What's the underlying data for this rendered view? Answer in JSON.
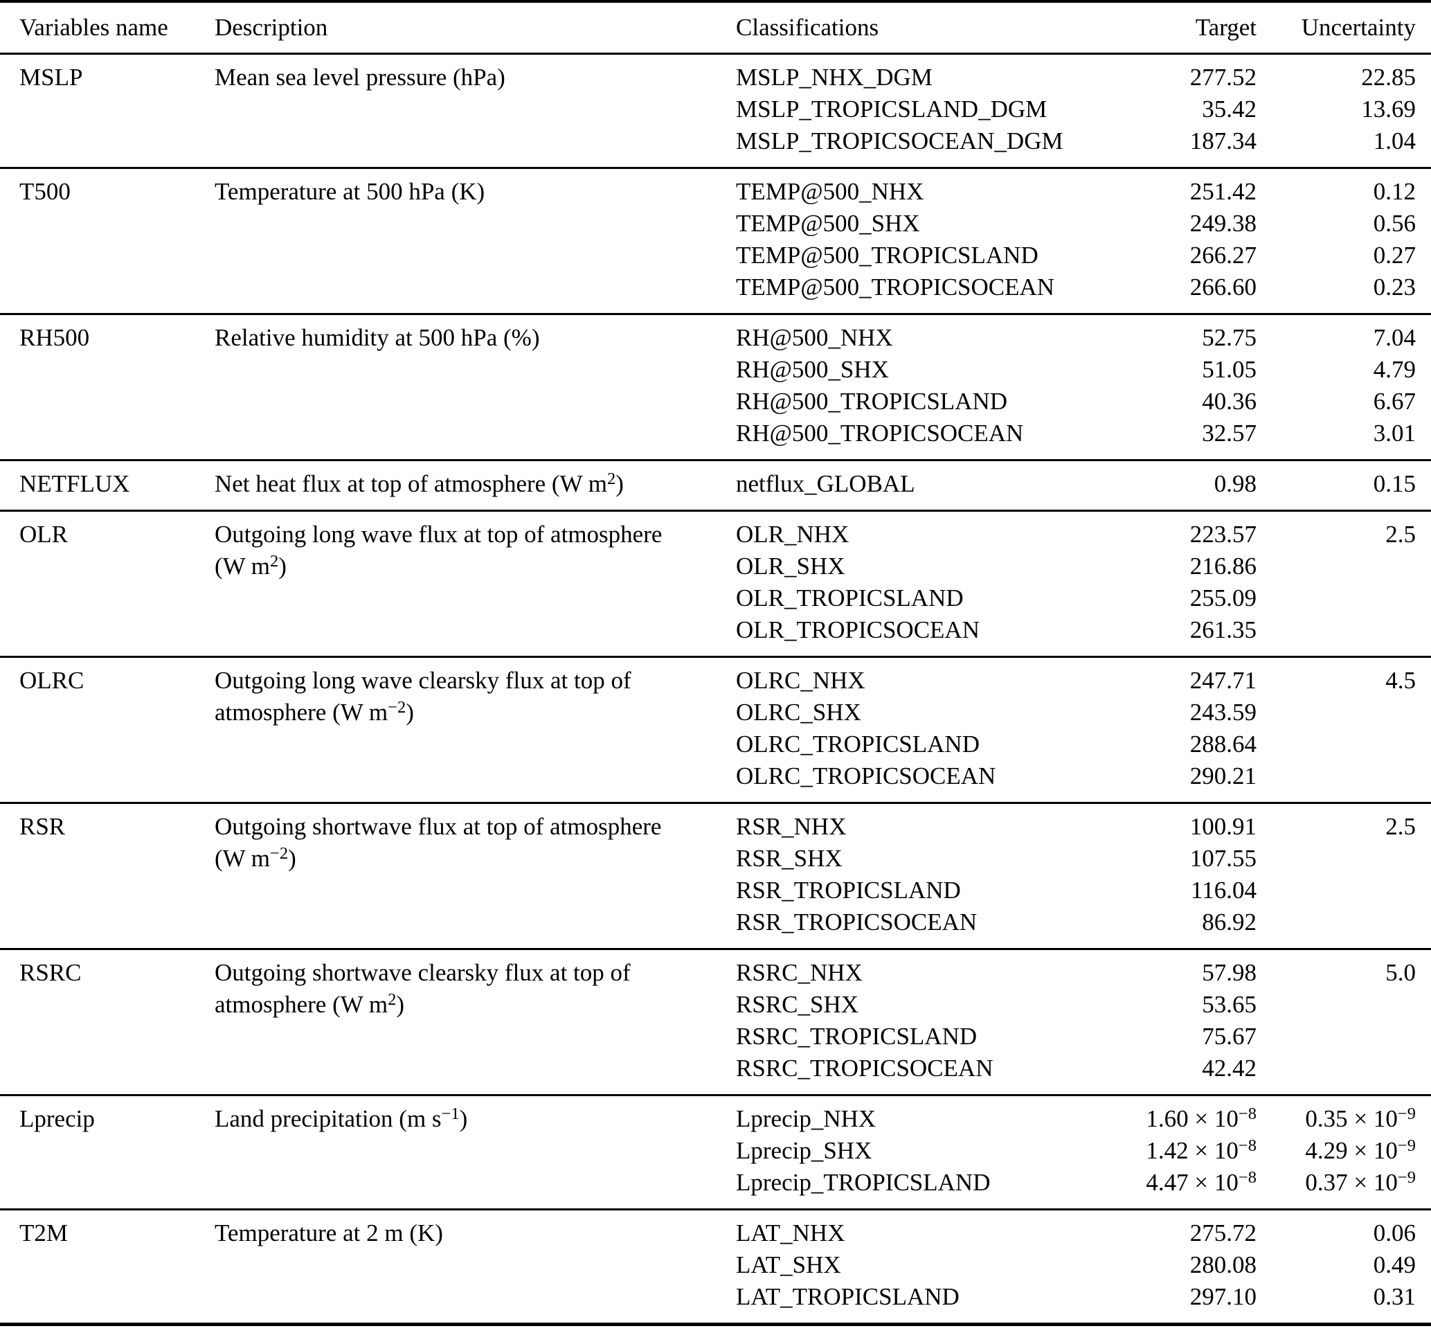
{
  "table": {
    "header": {
      "variables_name": "Variables name",
      "description": "Description",
      "classifications": "Classifications",
      "target": "Target",
      "uncertainty": "Uncertainty"
    },
    "groups": [
      {
        "variable": "MSLP",
        "description_lines": [
          "Mean sea level pressure (hPa)"
        ],
        "rows": [
          {
            "classification": "MSLP_NHX_DGM",
            "target": "277.52",
            "uncertainty": "22.85"
          },
          {
            "classification": "MSLP_TROPICSLAND_DGM",
            "target": "35.42",
            "uncertainty": "13.69"
          },
          {
            "classification": "MSLP_TROPICSOCEAN_DGM",
            "target": "187.34",
            "uncertainty": "1.04"
          }
        ]
      },
      {
        "variable": "T500",
        "description_lines": [
          "Temperature at 500 hPa (K)"
        ],
        "rows": [
          {
            "classification": "TEMP@500_NHX",
            "target": "251.42",
            "uncertainty": "0.12"
          },
          {
            "classification": "TEMP@500_SHX",
            "target": "249.38",
            "uncertainty": "0.56"
          },
          {
            "classification": "TEMP@500_TROPICSLAND",
            "target": "266.27",
            "uncertainty": "0.27"
          },
          {
            "classification": "TEMP@500_TROPICSOCEAN",
            "target": "266.60",
            "uncertainty": "0.23"
          }
        ]
      },
      {
        "variable": "RH500",
        "description_lines": [
          "Relative humidity at 500 hPa (%)"
        ],
        "rows": [
          {
            "classification": "RH@500_NHX",
            "target": "52.75",
            "uncertainty": "7.04"
          },
          {
            "classification": "RH@500_SHX",
            "target": "51.05",
            "uncertainty": "4.79"
          },
          {
            "classification": "RH@500_TROPICSLAND",
            "target": "40.36",
            "uncertainty": "6.67"
          },
          {
            "classification": "RH@500_TROPICSOCEAN",
            "target": "32.57",
            "uncertainty": "3.01"
          }
        ]
      },
      {
        "variable": "NETFLUX",
        "description_lines": [
          "Net heat flux at top of atmosphere (W m^{2})"
        ],
        "rows": [
          {
            "classification": "netflux_GLOBAL",
            "target": "0.98",
            "uncertainty": "0.15"
          }
        ]
      },
      {
        "variable": "OLR",
        "description_lines": [
          "Outgoing long wave flux at top of atmosphere",
          "(W m^{2})"
        ],
        "rows": [
          {
            "classification": "OLR_NHX",
            "target": "223.57",
            "uncertainty": "2.5"
          },
          {
            "classification": "OLR_SHX",
            "target": "216.86",
            "uncertainty": ""
          },
          {
            "classification": "OLR_TROPICSLAND",
            "target": "255.09",
            "uncertainty": ""
          },
          {
            "classification": "OLR_TROPICSOCEAN",
            "target": "261.35",
            "uncertainty": ""
          }
        ]
      },
      {
        "variable": "OLRC",
        "description_lines": [
          "Outgoing long wave clearsky flux at top of",
          "atmosphere (W m^{−2})"
        ],
        "rows": [
          {
            "classification": "OLRC_NHX",
            "target": "247.71",
            "uncertainty": "4.5"
          },
          {
            "classification": "OLRC_SHX",
            "target": "243.59",
            "uncertainty": ""
          },
          {
            "classification": "OLRC_TROPICSLAND",
            "target": "288.64",
            "uncertainty": ""
          },
          {
            "classification": "OLRC_TROPICSOCEAN",
            "target": "290.21",
            "uncertainty": ""
          }
        ]
      },
      {
        "variable": "RSR",
        "description_lines": [
          "Outgoing shortwave flux at top of atmosphere",
          "(W m^{−2})"
        ],
        "rows": [
          {
            "classification": "RSR_NHX",
            "target": "100.91",
            "uncertainty": "2.5"
          },
          {
            "classification": "RSR_SHX",
            "target": "107.55",
            "uncertainty": ""
          },
          {
            "classification": "RSR_TROPICSLAND",
            "target": "116.04",
            "uncertainty": ""
          },
          {
            "classification": "RSR_TROPICSOCEAN",
            "target": "86.92",
            "uncertainty": ""
          }
        ]
      },
      {
        "variable": "RSRC",
        "description_lines": [
          "Outgoing shortwave clearsky flux at top of",
          "atmosphere (W m^{2})"
        ],
        "rows": [
          {
            "classification": "RSRC_NHX",
            "target": "57.98",
            "uncertainty": "5.0"
          },
          {
            "classification": "RSRC_SHX",
            "target": "53.65",
            "uncertainty": ""
          },
          {
            "classification": "RSRC_TROPICSLAND",
            "target": "75.67",
            "uncertainty": ""
          },
          {
            "classification": "RSRC_TROPICSOCEAN",
            "target": "42.42",
            "uncertainty": ""
          }
        ]
      },
      {
        "variable": "Lprecip",
        "description_lines": [
          "Land precipitation (m s^{−1})"
        ],
        "rows": [
          {
            "classification": "Lprecip_NHX",
            "target": "1.60 × 10^{−8}",
            "uncertainty": "0.35 × 10^{−9}"
          },
          {
            "classification": "Lprecip_SHX",
            "target": "1.42 × 10^{−8}",
            "uncertainty": "4.29 × 10^{−9}"
          },
          {
            "classification": "Lprecip_TROPICSLAND",
            "target": "4.47 × 10^{−8}",
            "uncertainty": "0.37 × 10^{−9}"
          }
        ]
      },
      {
        "variable": "T2M",
        "description_lines": [
          "Temperature at 2 m (K)"
        ],
        "rows": [
          {
            "classification": "LAT_NHX",
            "target": "275.72",
            "uncertainty": "0.06"
          },
          {
            "classification": "LAT_SHX",
            "target": "280.08",
            "uncertainty": "0.49"
          },
          {
            "classification": "LAT_TROPICSLAND",
            "target": "297.10",
            "uncertainty": "0.31"
          }
        ]
      }
    ]
  }
}
